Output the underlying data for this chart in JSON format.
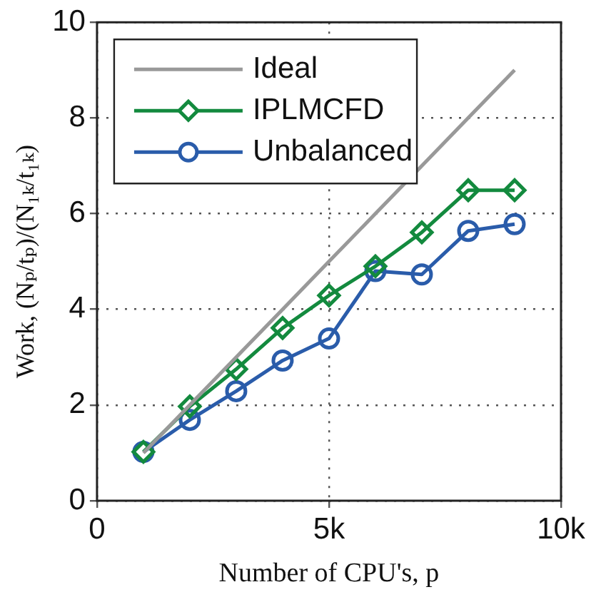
{
  "chart_data": {
    "type": "line",
    "xlabel": "Number of CPU's, p",
    "ylabel": "Work, (Nₚ/tₚ)/(N₁ₖ/t₁ₖ)",
    "x": [
      1000,
      2000,
      3000,
      4000,
      5000,
      6000,
      7000,
      8000,
      9000
    ],
    "series": [
      {
        "name": "Ideal",
        "color": "#999999",
        "values": [
          1,
          2,
          3,
          4,
          5,
          6,
          7,
          8,
          9
        ],
        "marker": "none"
      },
      {
        "name": "IPLMCFD",
        "color": "#138a3e",
        "values": [
          1.02,
          1.97,
          2.75,
          3.61,
          4.29,
          4.9,
          5.61,
          6.49,
          6.49
        ],
        "marker": "diamond"
      },
      {
        "name": "Unbalanced",
        "color": "#2a5caa",
        "values": [
          1.02,
          1.69,
          2.29,
          2.93,
          3.39,
          4.8,
          4.73,
          5.64,
          5.78
        ],
        "marker": "circle"
      }
    ],
    "xlim": [
      0,
      10000
    ],
    "xticks": [
      {
        "value": 0,
        "label": "0"
      },
      {
        "value": 5000,
        "label": "5k"
      },
      {
        "value": 10000,
        "label": "10k"
      }
    ],
    "ylim": [
      0,
      10
    ],
    "yticks": [
      0,
      2,
      4,
      6,
      8,
      10
    ],
    "grid": true,
    "legend": "top left",
    "line_style": "solid"
  }
}
